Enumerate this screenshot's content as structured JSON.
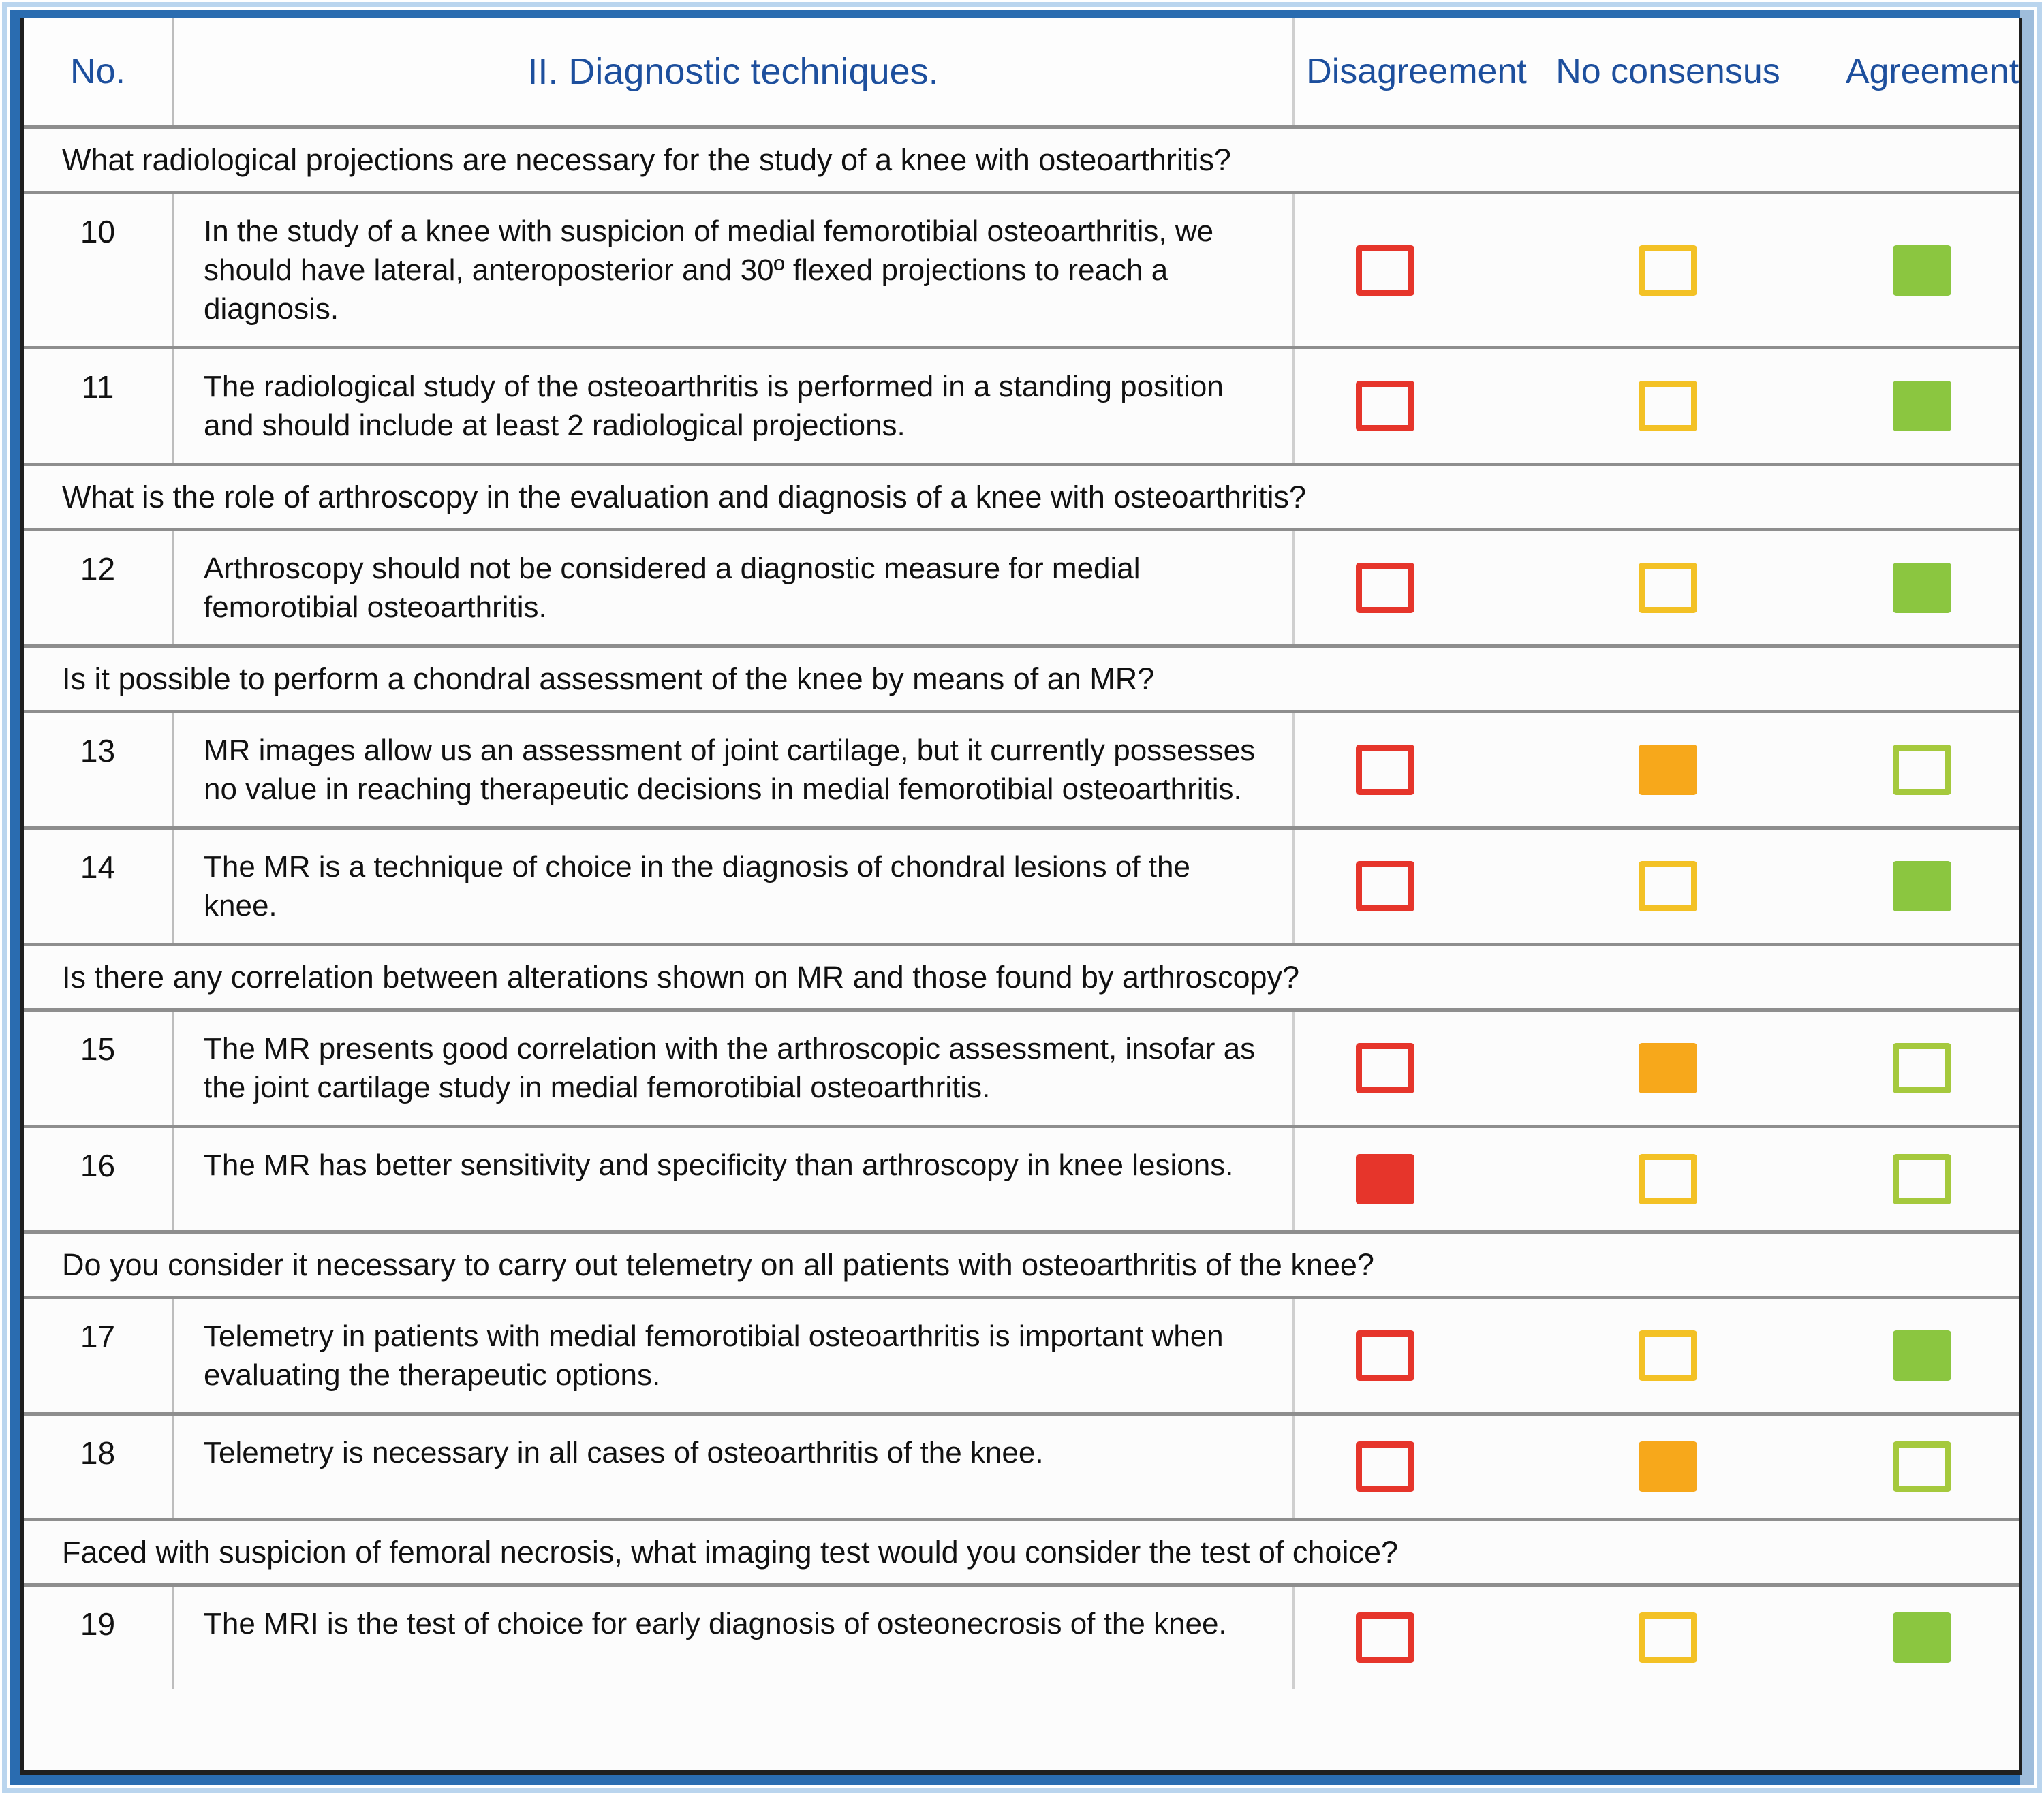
{
  "palette": {
    "frame_blue": "#2a6cb0",
    "frame_light_blue": "#bad5ee",
    "header_text_blue": "#1d4f9d",
    "mark_red": "#e6352b",
    "mark_yellow_outline": "#f3c125",
    "mark_orange_fill": "#f7a81b",
    "mark_green_outline": "#a5c93d",
    "mark_green_fill": "#8bc640"
  },
  "table": {
    "columns": {
      "no": "No.",
      "title": "II. Diagnostic techniques.",
      "disagreement": "Disagreement",
      "no_consensus": "No consensus",
      "agreement": "Agreement"
    },
    "sections": [
      {
        "question": "What radiological projections are necessary for the study of a knee with osteoarthritis?",
        "items": [
          {
            "no": "10",
            "text": "In the study of a knee with suspicion of medial femorotibial osteoarthritis, we should have lateral, anteroposterior and 30º flexed projections to reach a diagnosis.",
            "marks": {
              "disagreement": "empty",
              "no_consensus": "empty",
              "agreement": "filled"
            }
          },
          {
            "no": "11",
            "text": "The radiological study of the osteoarthritis is performed in a standing position and should include at least 2 radiological projections.",
            "marks": {
              "disagreement": "empty",
              "no_consensus": "empty",
              "agreement": "filled"
            }
          }
        ]
      },
      {
        "question": "What is the role of arthroscopy in the evaluation and diagnosis of a knee with osteoarthritis?",
        "items": [
          {
            "no": "12",
            "text": "Arthroscopy should not be considered a diagnostic measure for medial femorotibial osteoarthritis.",
            "marks": {
              "disagreement": "empty",
              "no_consensus": "empty",
              "agreement": "filled"
            }
          }
        ]
      },
      {
        "question": "Is it possible to perform a chondral assessment of the knee by means of an MR?",
        "items": [
          {
            "no": "13",
            "text": "MR images allow us an assessment of joint cartilage, but it currently possesses no value in reaching therapeutic decisions in medial femorotibial osteoarthritis.",
            "marks": {
              "disagreement": "empty",
              "no_consensus": "filled",
              "agreement": "empty"
            }
          },
          {
            "no": "14",
            "text": "The MR is a technique of choice in the diagnosis of chondral lesions of the knee.",
            "marks": {
              "disagreement": "empty",
              "no_consensus": "empty",
              "agreement": "filled"
            }
          }
        ]
      },
      {
        "question": "Is there any correlation between alterations shown on MR and those found by arthroscopy?",
        "items": [
          {
            "no": "15",
            "text": "The MR presents good correlation with the arthroscopic assessment, insofar as the joint cartilage study in medial femorotibial osteoarthritis.",
            "marks": {
              "disagreement": "empty",
              "no_consensus": "filled",
              "agreement": "empty"
            }
          },
          {
            "no": "16",
            "text": "The MR has better sensitivity and specificity than arthroscopy in knee lesions.",
            "marks": {
              "disagreement": "filled",
              "no_consensus": "empty",
              "agreement": "empty"
            }
          }
        ]
      },
      {
        "question": "Do you consider it necessary to carry out telemetry on all patients with osteoarthritis of the knee?",
        "items": [
          {
            "no": "17",
            "text": "Telemetry in patients with medial femorotibial osteoarthritis is important when evaluating the therapeutic options.",
            "marks": {
              "disagreement": "empty",
              "no_consensus": "empty",
              "agreement": "filled"
            }
          },
          {
            "no": "18",
            "text": "Telemetry is necessary in all cases of osteoarthritis of the knee.",
            "marks": {
              "disagreement": "empty",
              "no_consensus": "filled",
              "agreement": "empty"
            }
          }
        ]
      },
      {
        "question": "Faced with suspicion of femoral necrosis, what imaging test would you consider the test of choice?",
        "items": [
          {
            "no": "19",
            "text": "The MRI is the test of choice for early diagnosis of osteonecrosis of the knee.",
            "marks": {
              "disagreement": "empty",
              "no_consensus": "empty",
              "agreement": "filled"
            }
          }
        ]
      }
    ]
  }
}
